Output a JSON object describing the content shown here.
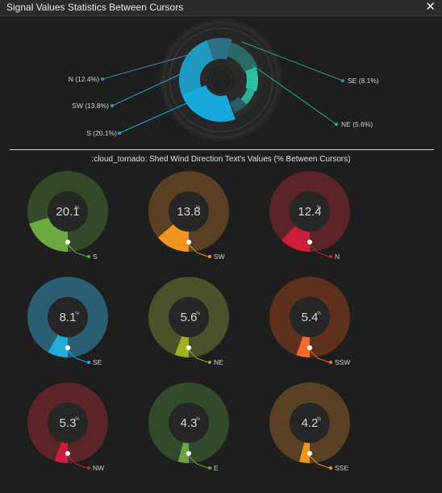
{
  "window": {
    "title": "Signal Values Statistics Between Cursors",
    "close_glyph": "✕"
  },
  "summary_chart": {
    "type": "pie",
    "labels": [
      {
        "text": "N (12.4%)",
        "color": "#3d8aa6"
      },
      {
        "text": "SW (13.8%)",
        "color": "#2a9fc0"
      },
      {
        "text": "S (20.1%)",
        "color": "#1ea6d8"
      },
      {
        "text": "SE (8.1%)",
        "color": "#2f9e94"
      },
      {
        "text": "NE (5.6%)",
        "color": "#25b09a"
      }
    ]
  },
  "section_title": ":cloud_tornado: Shed Wind Direction Text's Values (% Between Cursors)",
  "chart_data": {
    "type": "pie",
    "title": ":cloud_tornado: Shed Wind Direction Text's Values (% Between Cursors)",
    "unit": "%",
    "categories": [
      "S",
      "SW",
      "N",
      "SE",
      "NE",
      "SSW",
      "NW",
      "E",
      "SSE"
    ],
    "values": [
      20.1,
      13.8,
      12.4,
      8.1,
      5.6,
      5.4,
      5.3,
      4.3,
      4.2
    ],
    "colors": [
      "#6aaa40",
      "#f0961e",
      "#cc1e3c",
      "#23abd9",
      "#9fb023",
      "#f06a2a",
      "#cc1e3c",
      "#69a545",
      "#f0961e"
    ],
    "track_colors": [
      "#344a2a",
      "#5a3f22",
      "#5a2428",
      "#2b5d74",
      "#4a5229",
      "#5e311c",
      "#5a2428",
      "#334a2c",
      "#5a4022"
    ]
  },
  "gauges": [
    {
      "value": "20.1",
      "label": "S",
      "unit": "%"
    },
    {
      "value": "13.8",
      "label": "SW",
      "unit": "%"
    },
    {
      "value": "12.4",
      "label": "N",
      "unit": "%"
    },
    {
      "value": "8.1",
      "label": "SE",
      "unit": "%"
    },
    {
      "value": "5.6",
      "label": "NE",
      "unit": "%"
    },
    {
      "value": "5.4",
      "label": "SSW",
      "unit": "%"
    },
    {
      "value": "5.3",
      "label": "NW",
      "unit": "%"
    },
    {
      "value": "4.3",
      "label": "E",
      "unit": "%"
    },
    {
      "value": "4.2",
      "label": "SSE",
      "unit": "%"
    }
  ]
}
